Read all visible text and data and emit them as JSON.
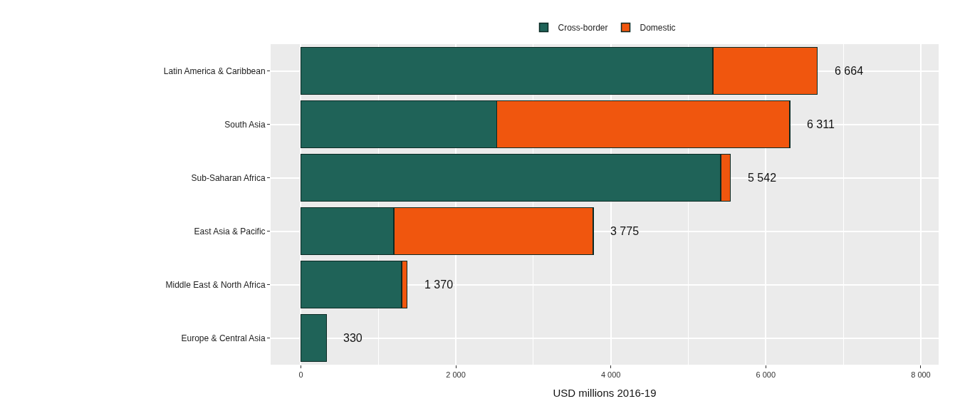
{
  "chart_data": {
    "type": "bar",
    "orientation": "horizontal",
    "stacked": true,
    "xlabel": "USD millions 2016-19",
    "categories": [
      "Latin America & Caribbean",
      "South Asia",
      "Sub-Saharan Africa",
      "East Asia & Pacific",
      "Middle East & North Africa",
      "Europe & Central Asia"
    ],
    "series": [
      {
        "name": "Cross-border",
        "color": "#1f6358",
        "values": [
          5315,
          2530,
          5420,
          1200,
          1300,
          330
        ]
      },
      {
        "name": "Domestic",
        "color": "#f0560e",
        "values": [
          1349,
          3781,
          122,
          2575,
          70,
          null
        ]
      }
    ],
    "totals": [
      "6 664",
      "6 311",
      "5 542",
      "3 775",
      "1 370",
      "330"
    ],
    "xlim": [
      -390,
      8230
    ],
    "xticks": [
      {
        "value": 0,
        "label": "0"
      },
      {
        "value": 2000,
        "label": "2 000"
      },
      {
        "value": 4000,
        "label": "4 000"
      },
      {
        "value": 6000,
        "label": "6 000"
      },
      {
        "value": 8000,
        "label": "8 000"
      }
    ],
    "grid": true,
    "legend": "top"
  }
}
